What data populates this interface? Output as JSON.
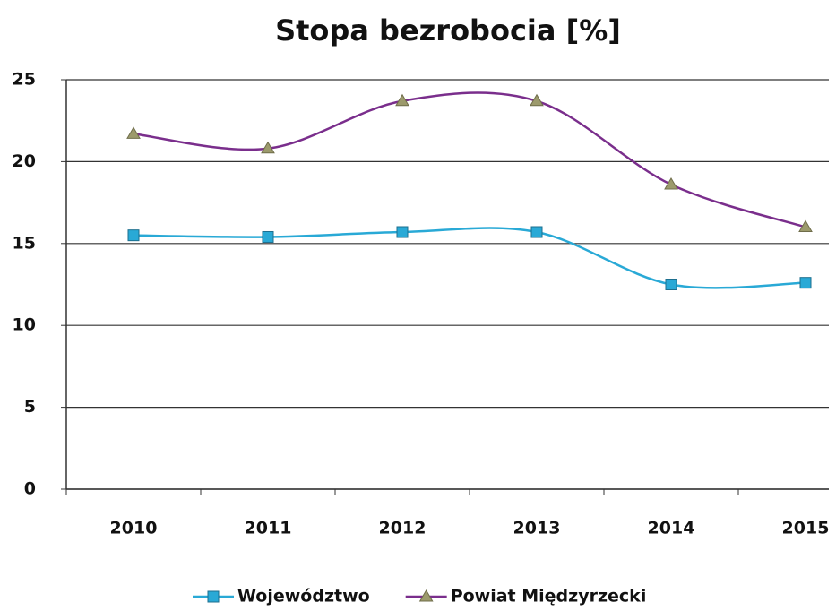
{
  "chart_data": {
    "type": "line",
    "title": "Stopa bezrobocia [%]",
    "categories": [
      "2010",
      "2011",
      "2012",
      "2013",
      "2014",
      "2015"
    ],
    "series": [
      {
        "name": "Województwo",
        "color": "#29a9d6",
        "marker": "square",
        "values": [
          15.5,
          15.4,
          15.7,
          15.7,
          12.5,
          12.6
        ]
      },
      {
        "name": "Powiat Międzyrzecki",
        "color": "#7a2e8c",
        "marker": "triangle",
        "values": [
          21.7,
          20.8,
          23.7,
          23.7,
          18.6,
          16.0
        ]
      }
    ],
    "ylim": [
      0,
      25
    ],
    "yticks": [
      0,
      5,
      10,
      15,
      20,
      25
    ],
    "grid": true,
    "smooth": true,
    "legend": "bottom"
  }
}
